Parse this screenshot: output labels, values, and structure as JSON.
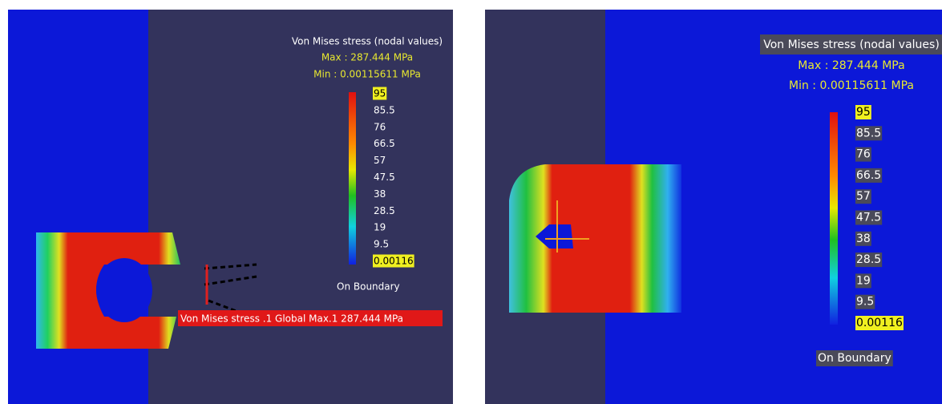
{
  "panels": [
    {
      "title": "Von Mises stress (nodal values)",
      "max": "Max : 287.444 MPa",
      "min": "Min : 0.00115611 MPa",
      "scale": [
        "95",
        "85.5",
        "76",
        "66.5",
        "57",
        "47.5",
        "38",
        "28.5",
        "19",
        "9.5",
        "0.00116"
      ],
      "boundary": "On Boundary",
      "annotation": "Von Mises stress .1  Global Max.1  287.444 MPa"
    },
    {
      "title": "Von Mises stress (nodal values)",
      "max": "Max : 287.444 MPa",
      "min": "Min : 0.00115611 MPa",
      "scale": [
        "95",
        "85.5",
        "76",
        "66.5",
        "57",
        "47.5",
        "38",
        "28.5",
        "19",
        "9.5",
        "0.00116"
      ],
      "boundary": "On Boundary"
    }
  ]
}
